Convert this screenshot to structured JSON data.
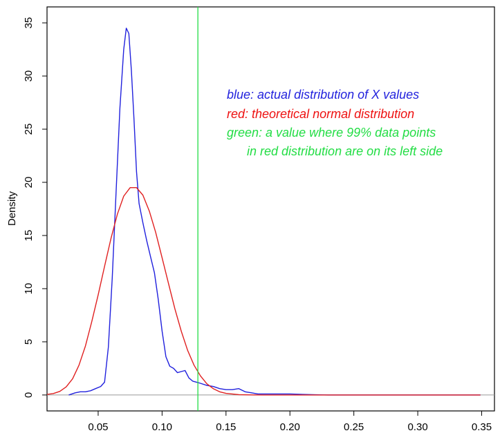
{
  "chart_data": {
    "type": "line",
    "title": "",
    "xlabel": "",
    "ylabel": "Density",
    "xlim": [
      0.01,
      0.36
    ],
    "ylim": [
      -1.5,
      36.5
    ],
    "grid": false,
    "xticks": [
      0.05,
      0.1,
      0.15,
      0.2,
      0.25,
      0.3,
      0.35
    ],
    "xtick_labels": [
      "0.05",
      "0.10",
      "0.15",
      "0.20",
      "0.25",
      "0.30",
      "0.35"
    ],
    "yticks": [
      0,
      5,
      10,
      15,
      20,
      25,
      30,
      35
    ],
    "ytick_labels": [
      "0",
      "5",
      "10",
      "15",
      "20",
      "25",
      "30",
      "35"
    ],
    "baseline": {
      "y": 0,
      "color": "#999999"
    },
    "series": [
      {
        "color": "#2020dd",
        "x": [
          0.027,
          0.032,
          0.036,
          0.04,
          0.044,
          0.048,
          0.052,
          0.055,
          0.058,
          0.061,
          0.064,
          0.067,
          0.07,
          0.072,
          0.074,
          0.076,
          0.078,
          0.08,
          0.082,
          0.085,
          0.088,
          0.091,
          0.094,
          0.097,
          0.1,
          0.103,
          0.106,
          0.109,
          0.112,
          0.115,
          0.118,
          0.121,
          0.124,
          0.127,
          0.13,
          0.135,
          0.14,
          0.145,
          0.15,
          0.155,
          0.16,
          0.165,
          0.17,
          0.175,
          0.18,
          0.19,
          0.2,
          0.21,
          0.22,
          0.23,
          0.24,
          0.26,
          0.28,
          0.3,
          0.32,
          0.349
        ],
        "y": [
          0.0,
          0.2,
          0.3,
          0.3,
          0.4,
          0.6,
          0.8,
          1.2,
          4.5,
          11.0,
          19.0,
          27.0,
          32.5,
          34.5,
          34.0,
          30.5,
          26.0,
          21.0,
          18.0,
          16.2,
          14.5,
          13.0,
          11.5,
          9.0,
          6.0,
          3.6,
          2.7,
          2.5,
          2.1,
          2.2,
          2.3,
          1.6,
          1.3,
          1.2,
          1.1,
          0.9,
          0.8,
          0.6,
          0.5,
          0.5,
          0.6,
          0.3,
          0.2,
          0.1,
          0.1,
          0.1,
          0.1,
          0.05,
          0.02,
          0.0,
          0.0,
          0.0,
          0.0,
          0.0,
          0.0,
          0.0
        ]
      },
      {
        "color": "#e02020",
        "x": [
          0.01,
          0.015,
          0.02,
          0.025,
          0.03,
          0.035,
          0.04,
          0.045,
          0.05,
          0.055,
          0.06,
          0.065,
          0.07,
          0.075,
          0.08,
          0.085,
          0.09,
          0.095,
          0.1,
          0.105,
          0.11,
          0.115,
          0.12,
          0.125,
          0.13,
          0.135,
          0.14,
          0.145,
          0.15,
          0.16,
          0.17,
          0.18,
          0.2,
          0.25,
          0.3,
          0.349
        ],
        "y": [
          0.05,
          0.14,
          0.34,
          0.76,
          1.53,
          2.8,
          4.6,
          6.9,
          9.4,
          12.1,
          14.7,
          17.0,
          18.7,
          19.5,
          19.5,
          18.8,
          17.3,
          15.3,
          12.9,
          10.5,
          8.1,
          6.0,
          4.2,
          2.8,
          1.8,
          1.05,
          0.6,
          0.3,
          0.15,
          0.03,
          0.005,
          0.0,
          0.0,
          0.0,
          0.0,
          0.0
        ]
      }
    ],
    "vline": {
      "x": 0.128,
      "color": "#22dd44"
    },
    "annotations": [
      {
        "text": "blue: actual distribution of X values",
        "color": "#2222dd"
      },
      {
        "text": "red: theoretical normal distribution",
        "color": "#ee1111"
      },
      {
        "text": "green: a value where 99% data points",
        "color": "#22dd44"
      },
      {
        "text": "in red distribution are on its left side",
        "color": "#22dd44"
      }
    ]
  }
}
